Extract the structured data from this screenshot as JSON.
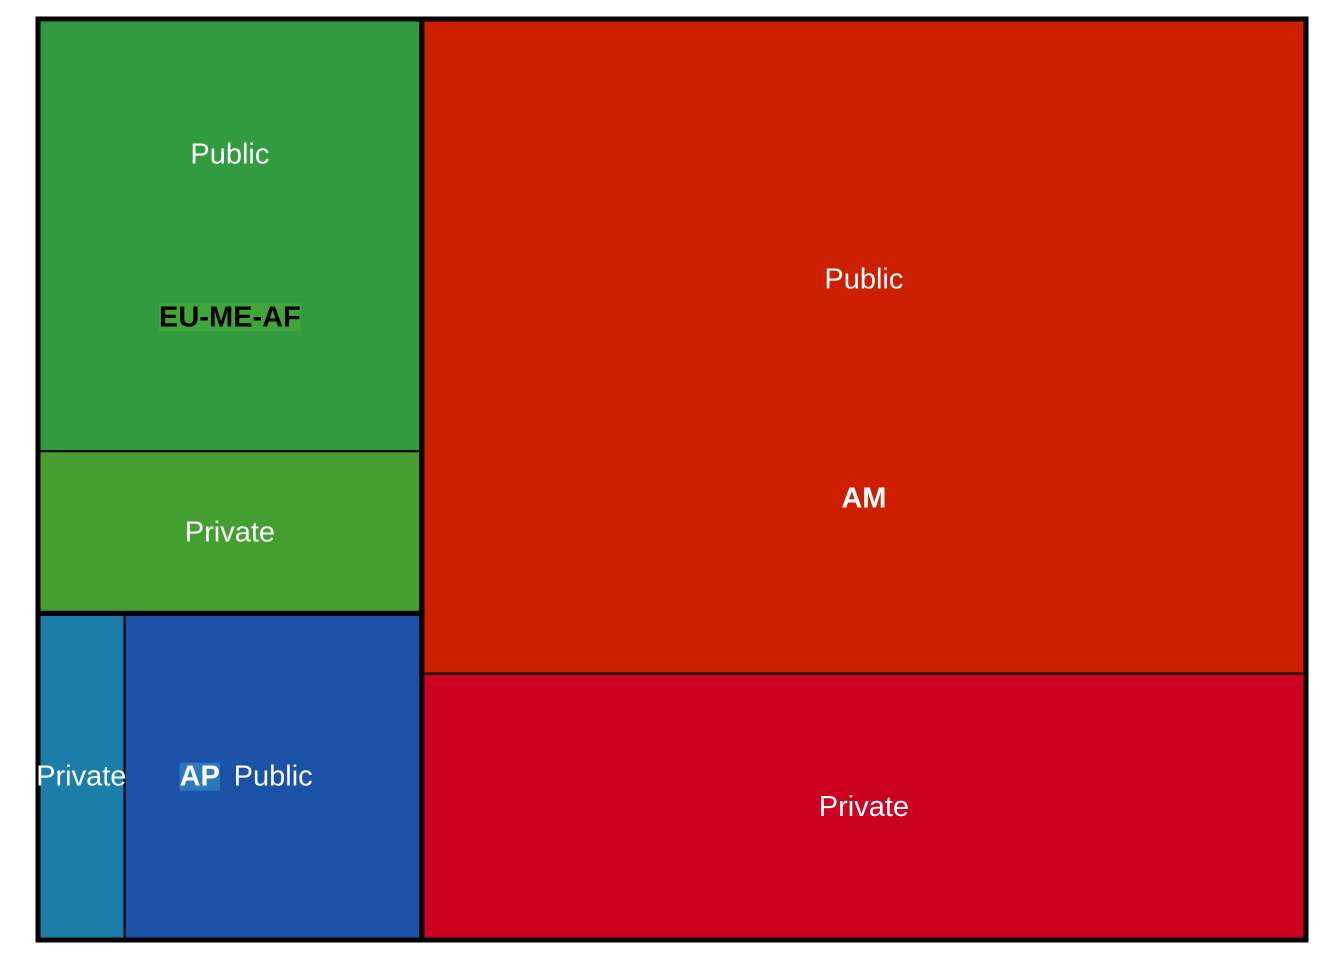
{
  "chart_data": {
    "type": "treemap",
    "title": "",
    "groups": [
      {
        "name": "AM",
        "color": "#cc1f00",
        "label_color": "#ffffff",
        "label_bg": "",
        "children": [
          {
            "name": "Public",
            "value": 61.4,
            "color": "#cc1f00"
          },
          {
            "name": "Private",
            "value": 25.0,
            "color": "#cc0020"
          }
        ]
      },
      {
        "name": "EU-ME-AF",
        "color": "#319c3f",
        "label_color": "#000000",
        "label_bg": "#40a63a",
        "children": [
          {
            "name": "Public",
            "value": 17.6,
            "color": "#319c3f"
          },
          {
            "name": "Private",
            "value": 6.6,
            "color": "#459e30"
          }
        ]
      },
      {
        "name": "AP",
        "color": "#1b51a6",
        "label_color": "#ffffff",
        "label_bg": "#2b79bd",
        "children": [
          {
            "name": "Public",
            "value": 10.3,
            "color": "#1b51a6"
          },
          {
            "name": "Private",
            "value": 3.0,
            "color": "#1c7ea8"
          }
        ]
      }
    ]
  }
}
